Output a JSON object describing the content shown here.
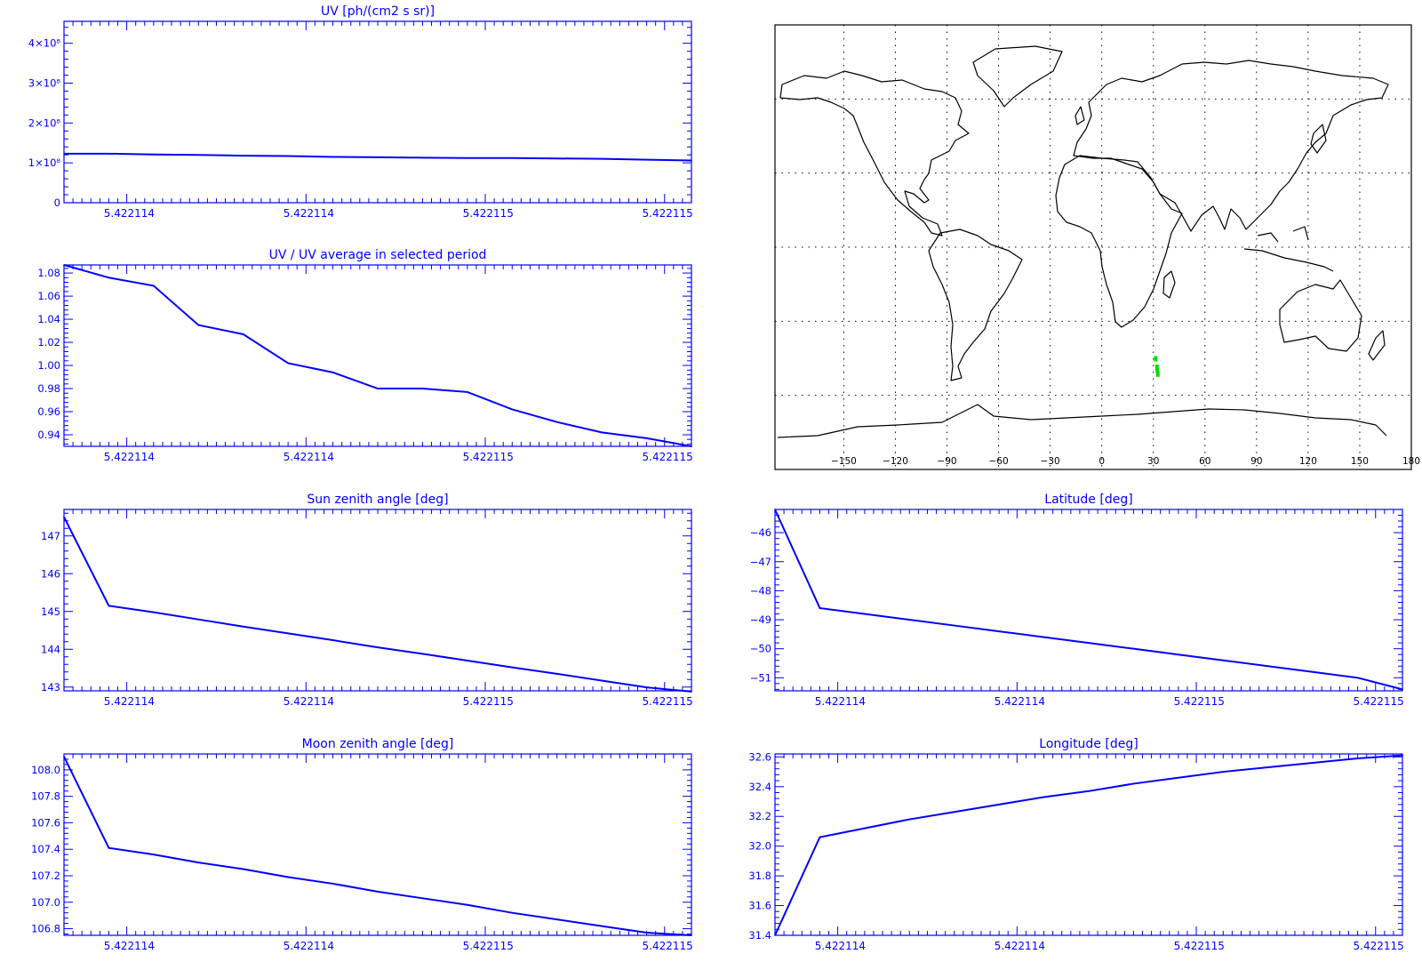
{
  "colors": {
    "plot": "#0000ff",
    "map_line": "#000000",
    "marker": "#00dd00",
    "background": "#ffffff"
  },
  "chart_data": [
    {
      "id": "uv",
      "type": "line",
      "title": "UV [ph/(cm2 s sr)]",
      "x": [
        0,
        1,
        2,
        3,
        4,
        5,
        6,
        7,
        8,
        9,
        10,
        11,
        12,
        13,
        14
      ],
      "y": [
        123000000.0,
        123000000.0,
        121000000.0,
        120000000.0,
        118000000.0,
        117000000.0,
        115000000.0,
        114000000.0,
        113000000.0,
        112000000.0,
        112000000.0,
        111000000.0,
        110000000.0,
        108000000.0,
        106000000.0
      ],
      "y_tick_values": [
        0,
        100000000.0,
        200000000.0,
        300000000.0,
        400000000.0
      ],
      "y_tick_labels": [
        "0",
        "1×10⁸",
        "2×10⁸",
        "3×10⁸",
        "4×10⁸"
      ],
      "ylim": [
        0,
        455000000.0
      ],
      "x_tick_labels": [
        "5.422114",
        "5.422114",
        "5.422115",
        "5.422115"
      ]
    },
    {
      "id": "uv_ratio",
      "type": "line",
      "title": "UV / UV average in selected period",
      "x": [
        0,
        1,
        2,
        3,
        4,
        5,
        6,
        7,
        8,
        9,
        10,
        11,
        12,
        13,
        14
      ],
      "y": [
        1.087,
        1.076,
        1.069,
        1.035,
        1.027,
        1.002,
        0.994,
        0.98,
        0.98,
        0.977,
        0.962,
        0.951,
        0.942,
        0.937,
        0.93
      ],
      "y_tick_values": [
        0.94,
        0.96,
        0.98,
        1.0,
        1.02,
        1.04,
        1.06,
        1.08
      ],
      "y_tick_labels": [
        "0.94",
        "0.96",
        "0.98",
        "1.00",
        "1.02",
        "1.04",
        "1.06",
        "1.08"
      ],
      "ylim": [
        0.93,
        1.087
      ],
      "x_tick_labels": [
        "5.422114",
        "5.422114",
        "5.422115",
        "5.422115"
      ]
    },
    {
      "id": "sun_zenith",
      "type": "line",
      "title": "Sun zenith angle [deg]",
      "x": [
        0,
        1,
        2,
        3,
        4,
        5,
        6,
        7,
        8,
        9,
        10,
        11,
        12,
        13,
        14
      ],
      "y": [
        147.5,
        145.15,
        144.98,
        144.79,
        144.6,
        144.42,
        144.24,
        144.05,
        143.88,
        143.7,
        143.52,
        143.35,
        143.17,
        142.99,
        142.88
      ],
      "y_tick_values": [
        143,
        144,
        145,
        146,
        147
      ],
      "y_tick_labels": [
        "143",
        "144",
        "145",
        "146",
        "147"
      ],
      "ylim": [
        142.9,
        147.7
      ],
      "x_tick_labels": [
        "5.422114",
        "5.422114",
        "5.422115",
        "5.422115"
      ]
    },
    {
      "id": "latitude",
      "type": "line",
      "title": "Latitude [deg]",
      "x": [
        0,
        1,
        2,
        3,
        4,
        5,
        6,
        7,
        8,
        9,
        10,
        11,
        12,
        13,
        14
      ],
      "y": [
        -45.2,
        -48.6,
        -48.8,
        -49.0,
        -49.2,
        -49.4,
        -49.6,
        -49.8,
        -50.0,
        -50.2,
        -50.4,
        -50.6,
        -50.8,
        -51.0,
        -51.4
      ],
      "y_tick_values": [
        -51,
        -50,
        -49,
        -48,
        -47,
        -46
      ],
      "y_tick_labels": [
        "−51",
        "−50",
        "−49",
        "−48",
        "−47",
        "−46"
      ],
      "ylim": [
        -51.45,
        -45.2
      ],
      "x_tick_labels": [
        "5.422114",
        "5.422114",
        "5.422115",
        "5.422115"
      ]
    },
    {
      "id": "moon_zenith",
      "type": "line",
      "title": "Moon zenith angle [deg]",
      "x": [
        0,
        1,
        2,
        3,
        4,
        5,
        6,
        7,
        8,
        9,
        10,
        11,
        12,
        13,
        14
      ],
      "y": [
        108.1,
        107.41,
        107.36,
        107.3,
        107.25,
        107.19,
        107.14,
        107.08,
        107.03,
        106.98,
        106.92,
        106.87,
        106.82,
        106.77,
        106.75
      ],
      "y_tick_values": [
        106.8,
        107.0,
        107.2,
        107.4,
        107.6,
        107.8,
        108.0
      ],
      "y_tick_labels": [
        "106.8",
        "107.0",
        "107.2",
        "107.4",
        "107.6",
        "107.8",
        "108.0"
      ],
      "ylim": [
        106.75,
        108.12
      ],
      "x_tick_labels": [
        "5.422114",
        "5.422114",
        "5.422115",
        "5.422115"
      ]
    },
    {
      "id": "longitude",
      "type": "line",
      "title": "Longitude [deg]",
      "x": [
        0,
        1,
        2,
        3,
        4,
        5,
        6,
        7,
        8,
        9,
        10,
        11,
        12,
        13,
        14
      ],
      "y": [
        31.4,
        32.06,
        32.12,
        32.18,
        32.23,
        32.28,
        32.33,
        32.37,
        32.42,
        32.46,
        32.5,
        32.53,
        32.56,
        32.59,
        32.61
      ],
      "y_tick_values": [
        31.4,
        31.6,
        31.8,
        32.0,
        32.2,
        32.4,
        32.6
      ],
      "y_tick_labels": [
        "31.4",
        "31.6",
        "31.8",
        "32.0",
        "32.2",
        "32.4",
        "32.6"
      ],
      "ylim": [
        31.4,
        32.62
      ],
      "x_tick_labels": [
        "5.422114",
        "5.422114",
        "5.422115",
        "5.422115"
      ]
    }
  ],
  "map": {
    "type": "map",
    "projection": "equirectangular",
    "grid": "dotted",
    "lon_range": [
      -190,
      180
    ],
    "lat_range": [
      -90,
      90
    ],
    "x_tick_values": [
      -150,
      -120,
      -90,
      -60,
      -30,
      0,
      30,
      60,
      90,
      120,
      150,
      180
    ],
    "x_tick_labels": [
      "−150",
      "−120",
      "−90",
      "−60",
      "−30",
      "0",
      "30",
      "60",
      "90",
      "120",
      "150",
      "180"
    ],
    "track": {
      "lon": [
        31.4,
        32.1,
        32.3,
        32.6
      ],
      "lat": [
        -45.2,
        -48.6,
        -49.8,
        -51.4
      ]
    }
  }
}
